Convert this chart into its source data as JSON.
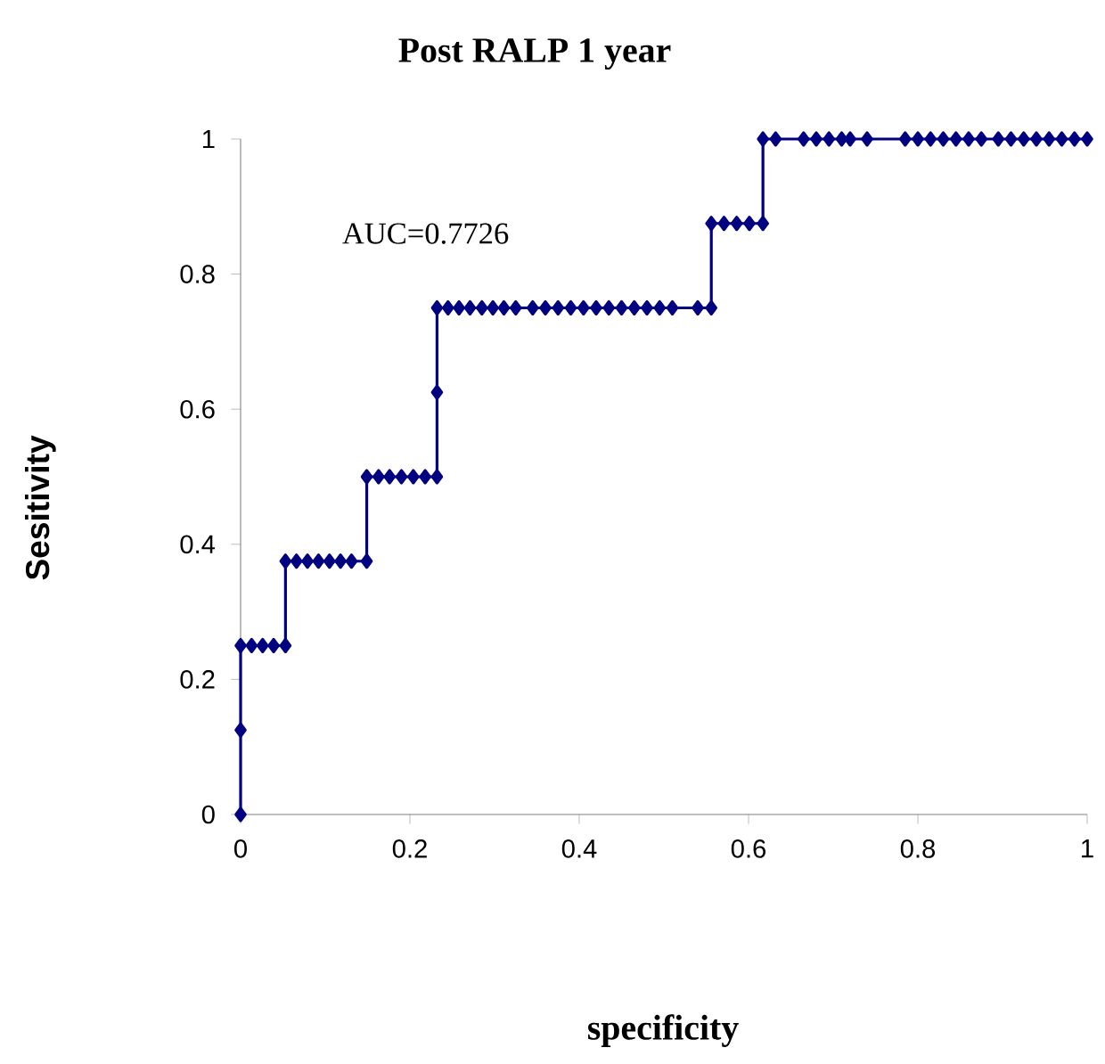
{
  "chart_data": {
    "type": "line",
    "title": "Post RALP 1 year",
    "xlabel": "specificity",
    "ylabel": "Sesitivity",
    "annotations": [
      "AUC=0.7726"
    ],
    "xlim": [
      0,
      1
    ],
    "ylim": [
      0,
      1
    ],
    "xticks": [
      0,
      0.2,
      0.4,
      0.6,
      0.8,
      1
    ],
    "yticks": [
      0,
      0.2,
      0.4,
      0.6,
      0.8,
      1
    ],
    "marker": "diamond",
    "line_style": "solid",
    "series": [
      {
        "color": "#000080",
        "x": [
          0,
          0,
          0,
          0.013,
          0.026,
          0.039,
          0.053,
          0.053,
          0.066,
          0.079,
          0.092,
          0.105,
          0.118,
          0.131,
          0.149,
          0.149,
          0.163,
          0.176,
          0.19,
          0.204,
          0.218,
          0.232,
          0.232,
          0.232,
          0.245,
          0.258,
          0.271,
          0.285,
          0.298,
          0.311,
          0.325,
          0.345,
          0.36,
          0.375,
          0.39,
          0.405,
          0.42,
          0.435,
          0.45,
          0.465,
          0.48,
          0.495,
          0.51,
          0.54,
          0.556,
          0.556,
          0.571,
          0.586,
          0.601,
          0.617,
          0.617,
          0.632,
          0.665,
          0.68,
          0.695,
          0.71,
          0.72,
          0.74,
          0.785,
          0.8,
          0.815,
          0.83,
          0.845,
          0.86,
          0.875,
          0.895,
          0.91,
          0.925,
          0.94,
          0.955,
          0.97,
          0.985,
          1.0
        ],
        "values": [
          0,
          0.125,
          0.25,
          0.25,
          0.25,
          0.25,
          0.25,
          0.375,
          0.375,
          0.375,
          0.375,
          0.375,
          0.375,
          0.375,
          0.375,
          0.5,
          0.5,
          0.5,
          0.5,
          0.5,
          0.5,
          0.5,
          0.625,
          0.75,
          0.75,
          0.75,
          0.75,
          0.75,
          0.75,
          0.75,
          0.75,
          0.75,
          0.75,
          0.75,
          0.75,
          0.75,
          0.75,
          0.75,
          0.75,
          0.75,
          0.75,
          0.75,
          0.75,
          0.75,
          0.75,
          0.875,
          0.875,
          0.875,
          0.875,
          0.875,
          1,
          1,
          1,
          1,
          1,
          1,
          1,
          1,
          1,
          1,
          1,
          1,
          1,
          1,
          1,
          1,
          1,
          1,
          1,
          1,
          1,
          1,
          1
        ]
      }
    ]
  }
}
